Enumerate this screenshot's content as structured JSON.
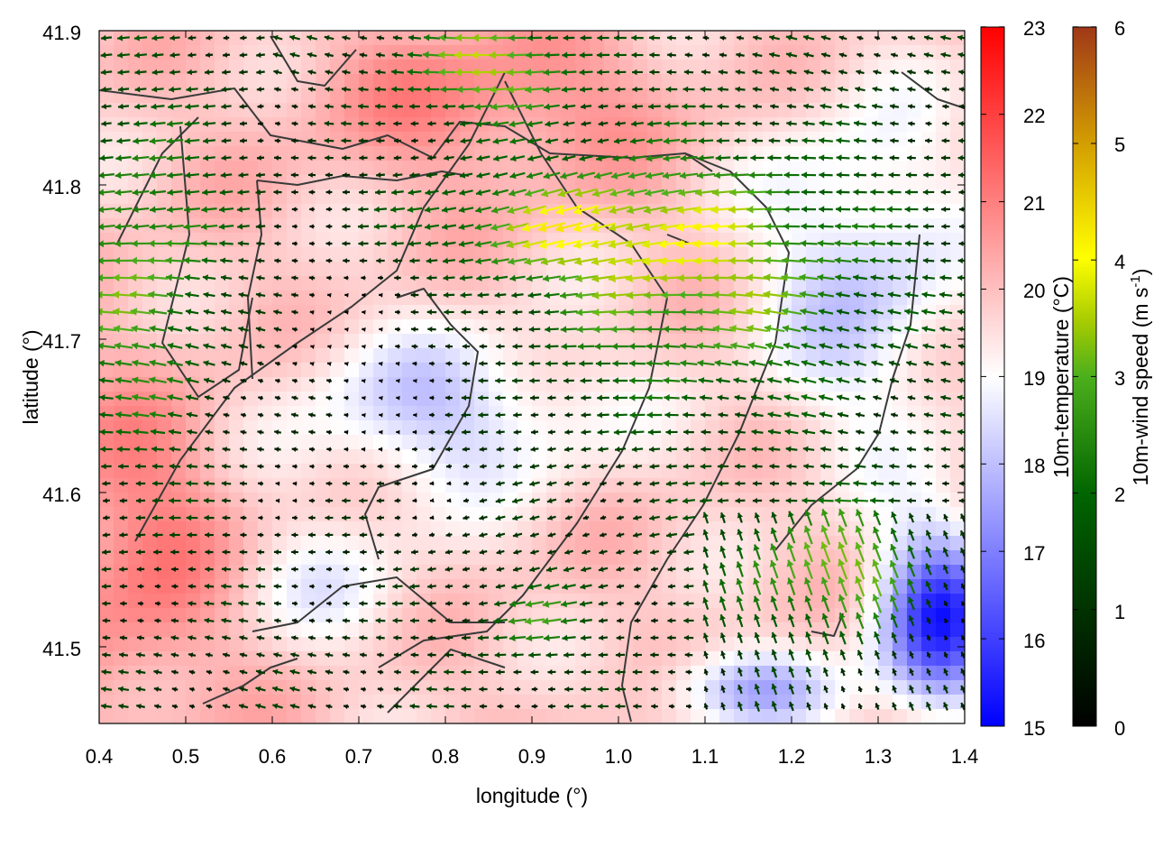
{
  "chart_data": {
    "type": "heatmap",
    "title": "",
    "xlabel": "longitude (°)",
    "ylabel": "latitude (°)",
    "xlim": [
      0.4,
      1.4
    ],
    "ylim": [
      41.45,
      41.9
    ],
    "xticks": [
      "0.4",
      "0.5",
      "0.6",
      "0.7",
      "0.8",
      "0.9",
      "1.0",
      "1.1",
      "1.2",
      "1.3",
      "1.4"
    ],
    "yticks": [
      "41.5",
      "41.6",
      "41.7",
      "41.8",
      "41.9"
    ],
    "overlay": "wind vectors colored by speed, with dark terrain contour lines",
    "colorbars": [
      {
        "name": "temperature",
        "label": "10m-temperature (°C)",
        "range": [
          15,
          23
        ],
        "ticks": [
          "15",
          "16",
          "17",
          "18",
          "19",
          "20",
          "21",
          "22",
          "23"
        ],
        "colors": [
          "#0000ff",
          "#ffffff",
          "#ff0000"
        ]
      },
      {
        "name": "wind",
        "label_main": "10m-wind speed (m s",
        "label_sup": "-1",
        "label_end": ")",
        "range": [
          0,
          6
        ],
        "ticks": [
          "0",
          "1",
          "2",
          "3",
          "4",
          "5",
          "6"
        ],
        "colors": [
          "#000000",
          "#006400",
          "#4caf1c",
          "#a8cc00",
          "#ffff00",
          "#d4a000",
          "#a03818"
        ]
      }
    ]
  }
}
